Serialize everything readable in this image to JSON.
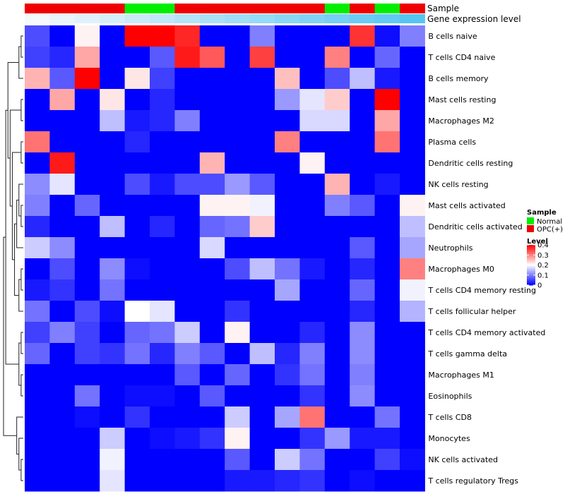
{
  "chart_data": {
    "type": "heatmap",
    "title": "",
    "annotation_tracks": [
      {
        "name": "Sample",
        "values": [
          "OPC(+)",
          "OPC(+)",
          "OPC(+)",
          "OPC(+)",
          "Normal",
          "Normal",
          "OPC(+)",
          "OPC(+)",
          "OPC(+)",
          "OPC(+)",
          "OPC(+)",
          "OPC(+)",
          "Normal",
          "OPC(+)",
          "Normal",
          "OPC(+)"
        ],
        "colors": {
          "Normal": "#00ee00",
          "OPC(+)": "#ee0000"
        }
      },
      {
        "name": "Gene expression level",
        "values": [
          0.0,
          0.07,
          0.13,
          0.2,
          0.27,
          0.33,
          0.4,
          0.47,
          0.53,
          0.6,
          0.67,
          0.73,
          0.8,
          0.87,
          0.93,
          1.0
        ],
        "color_low": "#f4f9fc",
        "color_high": "#56c5f2"
      }
    ],
    "rows": [
      "B cells naive",
      "T cells CD4 naive",
      "B cells memory",
      "Mast cells resting",
      "Macrophages M2",
      "Plasma cells",
      "Dendritic cells resting",
      "NK cells resting",
      "Mast cells activated",
      "Dendritic cells activated",
      "Neutrophils",
      "Macrophages M0",
      "T cells CD4 memory resting",
      "T cells follicular helper",
      "T cells CD4 memory activated",
      "T cells gamma delta",
      "Macrophages M1",
      "Eosinophils",
      "T cells CD8",
      "Monocytes",
      "NK cells activated",
      "T cells regulatory  Tregs"
    ],
    "values": [
      [
        0.06,
        0,
        0.21,
        0,
        0.4,
        0.4,
        0.37,
        0,
        0,
        0.1,
        0,
        0,
        0,
        0.36,
        0.01,
        0.1
      ],
      [
        0.05,
        0.03,
        0.27,
        0,
        0,
        0.07,
        0.38,
        0.33,
        0,
        0.35,
        0,
        0,
        0.3,
        0,
        0.08,
        0
      ],
      [
        0.26,
        0.07,
        0.4,
        0,
        0.22,
        0.05,
        0,
        0,
        0,
        0,
        0.25,
        0,
        0.06,
        0.15,
        0.02,
        0
      ],
      [
        0,
        0.27,
        0,
        0.22,
        0,
        0.03,
        0,
        0,
        0,
        0,
        0.12,
        0.18,
        0.24,
        0,
        0.4,
        0
      ],
      [
        0,
        0,
        0,
        0.15,
        0.02,
        0.03,
        0.1,
        0,
        0,
        0,
        0,
        0.17,
        0.17,
        0,
        0.27,
        0
      ],
      [
        0.31,
        0,
        0,
        0,
        0.03,
        0,
        0,
        0,
        0,
        0,
        0.3,
        0,
        0,
        0,
        0.31,
        0
      ],
      [
        0,
        0.38,
        0,
        0,
        0,
        0,
        0,
        0.26,
        0,
        0,
        0,
        0.21,
        0,
        0,
        0,
        0
      ],
      [
        0.11,
        0.18,
        0,
        0,
        0.06,
        0.02,
        0.06,
        0.06,
        0.12,
        0.07,
        0,
        0,
        0.26,
        0,
        0.02,
        0
      ],
      [
        0.1,
        0,
        0.08,
        0,
        0,
        0,
        0,
        0.21,
        0.21,
        0.19,
        0,
        0,
        0.1,
        0.07,
        0,
        0.21
      ],
      [
        0.03,
        0,
        0,
        0.15,
        0,
        0.03,
        0,
        0.08,
        0.09,
        0.24,
        0,
        0,
        0,
        0,
        0,
        0.15
      ],
      [
        0.16,
        0.11,
        0,
        0,
        0,
        0,
        0,
        0.17,
        0,
        0,
        0,
        0,
        0,
        0.07,
        0,
        0.13
      ],
      [
        0,
        0.06,
        0,
        0.11,
        0.01,
        0,
        0,
        0,
        0.06,
        0.15,
        0.09,
        0.02,
        0,
        0.03,
        0,
        0.3
      ],
      [
        0.02,
        0.04,
        0,
        0.09,
        0,
        0,
        0,
        0,
        0,
        0,
        0.13,
        0,
        0,
        0.08,
        0,
        0.19
      ],
      [
        0.09,
        0,
        0.06,
        0.01,
        0.2,
        0.18,
        0,
        0,
        0.04,
        0,
        0,
        0,
        0,
        0.03,
        0,
        0.14
      ],
      [
        0.05,
        0.1,
        0.05,
        0,
        0.08,
        0.09,
        0.16,
        0,
        0.21,
        0,
        0,
        0.03,
        0,
        0.11,
        0,
        0
      ],
      [
        0.08,
        0,
        0.05,
        0.04,
        0.09,
        0.03,
        0.1,
        0.07,
        0,
        0.15,
        0.03,
        0.1,
        0,
        0.11,
        0,
        0
      ],
      [
        0,
        0,
        0,
        0,
        0,
        0,
        0.07,
        0,
        0.08,
        0,
        0.04,
        0.09,
        0,
        0.1,
        0,
        0
      ],
      [
        0,
        0,
        0.09,
        0,
        0.01,
        0.01,
        0,
        0.07,
        0,
        0,
        0,
        0.04,
        0,
        0.11,
        0,
        0
      ],
      [
        0,
        0,
        0.01,
        0,
        0.04,
        0,
        0,
        0,
        0.16,
        0,
        0.13,
        0.31,
        0,
        0,
        0.09,
        0
      ],
      [
        0,
        0,
        0,
        0.16,
        0,
        0.01,
        0.02,
        0.04,
        0.21,
        0,
        0,
        0.04,
        0.12,
        0.02,
        0.02,
        0
      ],
      [
        0,
        0,
        0,
        0.19,
        0,
        0,
        0,
        0,
        0.07,
        0,
        0.16,
        0.09,
        0,
        0,
        0.05,
        0.01
      ],
      [
        0,
        0,
        0,
        0.18,
        0,
        0,
        0,
        0,
        0.02,
        0.02,
        0.03,
        0.04,
        0,
        0.01,
        0,
        0
      ]
    ],
    "color_scale": {
      "low": "#0000ff",
      "mid": "#ffffff",
      "high": "#ff0000",
      "min": 0,
      "mid_value": 0.2,
      "max": 0.4
    },
    "legend_sample": {
      "title": "Sample",
      "items": [
        {
          "label": "Normal",
          "color": "#00ee00"
        },
        {
          "label": "OPC(+)",
          "color": "#ee0000"
        }
      ]
    },
    "legend_level": {
      "title": "Level",
      "ticks": [
        "0.4",
        "0.3",
        "0.2",
        "0.1",
        "0"
      ],
      "tick_values": [
        0.4,
        0.3,
        0.2,
        0.1,
        0
      ]
    },
    "dendrogram": {
      "side": "left",
      "order": [
        "B cells naive",
        "T cells CD4 naive",
        "B cells memory",
        "Mast cells resting",
        "Macrophages M2",
        "Plasma cells",
        "Dendritic cells resting",
        "NK cells resting",
        "Mast cells activated",
        "Dendritic cells activated",
        "Neutrophils",
        "Macrophages M0",
        "T cells CD4 memory resting",
        "T cells follicular helper",
        "T cells CD4 memory activated",
        "T cells gamma delta",
        "Macrophages M1",
        "Eosinophils",
        "T cells CD8",
        "Monocytes",
        "NK cells activated",
        "T cells regulatory  Tregs"
      ]
    }
  }
}
